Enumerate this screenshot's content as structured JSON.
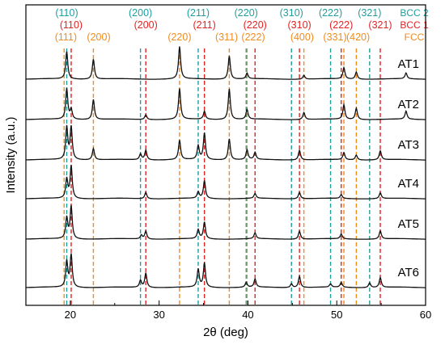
{
  "chart_data": {
    "type": "line",
    "xlabel": "2θ (deg)",
    "ylabel": "Intensity (a.u.)",
    "xlim": [
      15,
      60
    ],
    "x_ticks": [
      "20",
      "30",
      "40",
      "50",
      "60"
    ],
    "grid": false,
    "colors": {
      "bcc2": "#1f9e9e",
      "bcc1": "#e32222",
      "fcc": "#f08c1e",
      "trace": "#111111",
      "axis": "#000000"
    },
    "legend": [
      {
        "name": "BCC 2",
        "color": "#1f9e9e"
      },
      {
        "name": "BCC 1",
        "color": "#e32222"
      },
      {
        "name": "FCC",
        "color": "#f08c1e"
      }
    ],
    "reference_lines": {
      "bcc2": [
        {
          "x": 19.6,
          "label": "(110)"
        },
        {
          "x": 27.9,
          "label": "(200)"
        },
        {
          "x": 34.4,
          "label": "(211)"
        },
        {
          "x": 39.8,
          "label": "(220)"
        },
        {
          "x": 44.9,
          "label": "(310)"
        },
        {
          "x": 49.3,
          "label": "(222)"
        },
        {
          "x": 53.7,
          "label": "(321)"
        }
      ],
      "bcc1": [
        {
          "x": 20.1,
          "label": "(110)"
        },
        {
          "x": 28.5,
          "label": "(200)"
        },
        {
          "x": 35.1,
          "label": "(211)"
        },
        {
          "x": 40.8,
          "label": "(220)"
        },
        {
          "x": 45.8,
          "label": "(310)"
        },
        {
          "x": 50.5,
          "label": "(222)"
        },
        {
          "x": 54.9,
          "label": "(321)"
        }
      ],
      "fcc": [
        {
          "x": 19.3,
          "label": "(111)"
        },
        {
          "x": 22.6,
          "label": "(200)"
        },
        {
          "x": 32.3,
          "label": "(220)"
        },
        {
          "x": 37.9,
          "label": "(311)"
        },
        {
          "x": 39.9,
          "label": "(222)"
        },
        {
          "x": 46.3,
          "label": "(400)"
        },
        {
          "x": 50.8,
          "label": "(331)"
        },
        {
          "x": 52.2,
          "label": "(420)"
        }
      ]
    },
    "series": [
      {
        "name": "AT1",
        "peaks": [
          [
            19.6,
            0.85
          ],
          [
            22.6,
            0.62
          ],
          [
            32.3,
            1.0
          ],
          [
            37.9,
            0.72
          ],
          [
            39.9,
            0.18
          ],
          [
            46.3,
            0.12
          ],
          [
            50.8,
            0.35
          ],
          [
            52.2,
            0.22
          ],
          [
            57.8,
            0.18
          ]
        ]
      },
      {
        "name": "AT2",
        "peaks": [
          [
            19.6,
            0.95
          ],
          [
            20.1,
            0.3
          ],
          [
            22.6,
            0.62
          ],
          [
            28.5,
            0.15
          ],
          [
            32.3,
            0.95
          ],
          [
            35.1,
            0.25
          ],
          [
            37.9,
            0.95
          ],
          [
            39.9,
            0.3
          ],
          [
            46.3,
            0.22
          ],
          [
            50.8,
            0.45
          ],
          [
            52.2,
            0.35
          ],
          [
            57.8,
            0.25
          ]
        ]
      },
      {
        "name": "AT3",
        "peaks": [
          [
            19.6,
            1.0
          ],
          [
            20.1,
            1.0
          ],
          [
            22.6,
            0.35
          ],
          [
            27.9,
            0.18
          ],
          [
            28.5,
            0.3
          ],
          [
            32.3,
            0.6
          ],
          [
            34.4,
            0.42
          ],
          [
            35.1,
            0.82
          ],
          [
            37.9,
            0.65
          ],
          [
            39.9,
            0.3
          ],
          [
            40.8,
            0.22
          ],
          [
            45.8,
            0.3
          ],
          [
            50.8,
            0.22
          ],
          [
            52.2,
            0.15
          ],
          [
            54.9,
            0.28
          ]
        ]
      },
      {
        "name": "AT4",
        "peaks": [
          [
            19.6,
            0.6
          ],
          [
            20.1,
            1.0
          ],
          [
            28.5,
            0.2
          ],
          [
            34.4,
            0.2
          ],
          [
            35.1,
            0.55
          ],
          [
            40.8,
            0.15
          ],
          [
            45.8,
            0.2
          ],
          [
            50.5,
            0.12
          ],
          [
            54.9,
            0.18
          ]
        ]
      },
      {
        "name": "AT5",
        "peaks": [
          [
            19.6,
            0.65
          ],
          [
            20.1,
            1.0
          ],
          [
            28.0,
            0.12
          ],
          [
            28.5,
            0.25
          ],
          [
            34.4,
            0.28
          ],
          [
            35.1,
            0.52
          ],
          [
            40.8,
            0.18
          ],
          [
            45.8,
            0.25
          ],
          [
            50.5,
            0.15
          ],
          [
            54.9,
            0.25
          ]
        ]
      },
      {
        "name": "AT6",
        "peaks": [
          [
            19.6,
            0.8
          ],
          [
            20.1,
            1.0
          ],
          [
            27.9,
            0.22
          ],
          [
            28.5,
            0.45
          ],
          [
            34.4,
            0.55
          ],
          [
            35.1,
            0.75
          ],
          [
            39.8,
            0.15
          ],
          [
            40.8,
            0.25
          ],
          [
            44.9,
            0.12
          ],
          [
            45.8,
            0.35
          ],
          [
            49.3,
            0.1
          ],
          [
            50.5,
            0.15
          ],
          [
            53.7,
            0.15
          ],
          [
            54.9,
            0.3
          ]
        ]
      }
    ]
  }
}
